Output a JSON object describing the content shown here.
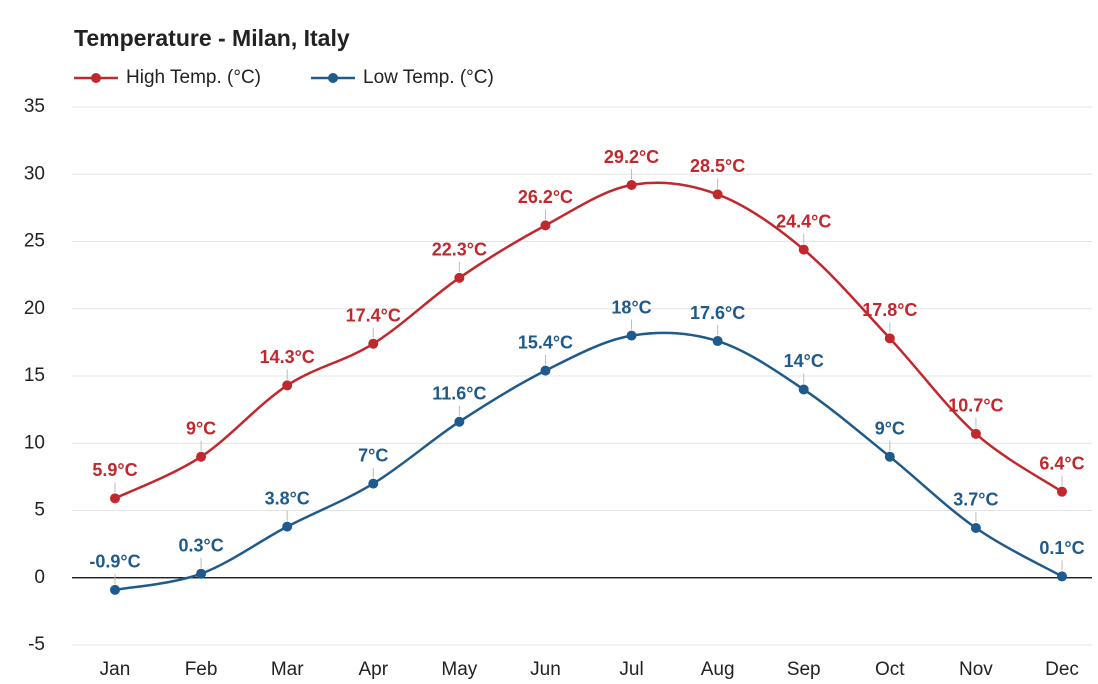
{
  "chart_data": {
    "type": "line",
    "title": "Temperature - Milan, Italy",
    "categories": [
      "Jan",
      "Feb",
      "Mar",
      "Apr",
      "May",
      "Jun",
      "Jul",
      "Aug",
      "Sep",
      "Oct",
      "Nov",
      "Dec"
    ],
    "series": [
      {
        "name": "High Temp. (°C)",
        "color": "#c0282d",
        "values": [
          5.9,
          9,
          14.3,
          17.4,
          22.3,
          26.2,
          29.2,
          28.5,
          24.4,
          17.8,
          10.7,
          6.4
        ],
        "value_labels": [
          "5.9°C",
          "9°C",
          "14.3°C",
          "17.4°C",
          "22.3°C",
          "26.2°C",
          "29.2°C",
          "28.5°C",
          "24.4°C",
          "17.8°C",
          "10.7°C",
          "6.4°C"
        ]
      },
      {
        "name": "Low Temp. (°C)",
        "color": "#1f5a8c",
        "values": [
          -0.9,
          0.3,
          3.8,
          7,
          11.6,
          15.4,
          18,
          17.6,
          14,
          9,
          3.7,
          0.1
        ],
        "value_labels": [
          "-0.9°C",
          "0.3°C",
          "3.8°C",
          "7°C",
          "11.6°C",
          "15.4°C",
          "18°C",
          "17.6°C",
          "14°C",
          "9°C",
          "3.7°C",
          "0.1°C"
        ]
      }
    ],
    "ylim": [
      -5,
      35
    ],
    "yticks": [
      -5,
      0,
      5,
      10,
      15,
      20,
      25,
      30,
      35
    ],
    "grid": true,
    "legend": "top-left"
  }
}
